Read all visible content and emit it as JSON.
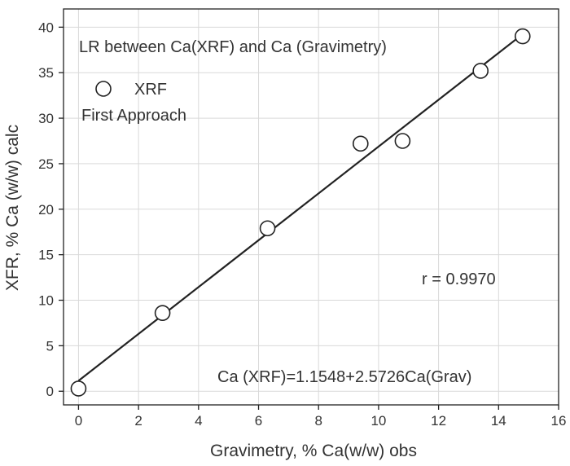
{
  "chart_data": {
    "type": "scatter",
    "title": "LR between Ca(XRF) and Ca (Gravimetry)",
    "xlabel": "Gravimetry, % Ca(w/w) obs",
    "ylabel": "XFR, % Ca (w/w) calc",
    "xlim": [
      -0.5,
      16
    ],
    "ylim": [
      -1.5,
      42
    ],
    "xticks": [
      0,
      2,
      4,
      6,
      8,
      10,
      12,
      14,
      16
    ],
    "yticks": [
      0,
      5,
      10,
      15,
      20,
      25,
      30,
      35,
      40
    ],
    "grid": true,
    "series": [
      {
        "name": "XRF",
        "marker": "open-circle",
        "x": [
          0,
          2.8,
          6.3,
          9.4,
          10.8,
          13.4,
          14.8
        ],
        "y": [
          0.3,
          8.6,
          17.9,
          27.2,
          27.5,
          35.2,
          39.0
        ]
      }
    ],
    "fit_line": {
      "intercept": 1.1548,
      "slope": 2.5726,
      "x_range": [
        0,
        14.8
      ]
    },
    "legend": {
      "entries": [
        "XRF"
      ],
      "subtitle": "First Approach",
      "placement": "top-left"
    },
    "annotations": {
      "r_value": "r = 0.9970",
      "equation": "Ca (XRF)=1.1548+2.5726Ca(Grav)"
    },
    "colors": {
      "ink": "#222222",
      "grid": "#d9d9d9",
      "background": "#ffffff"
    }
  }
}
